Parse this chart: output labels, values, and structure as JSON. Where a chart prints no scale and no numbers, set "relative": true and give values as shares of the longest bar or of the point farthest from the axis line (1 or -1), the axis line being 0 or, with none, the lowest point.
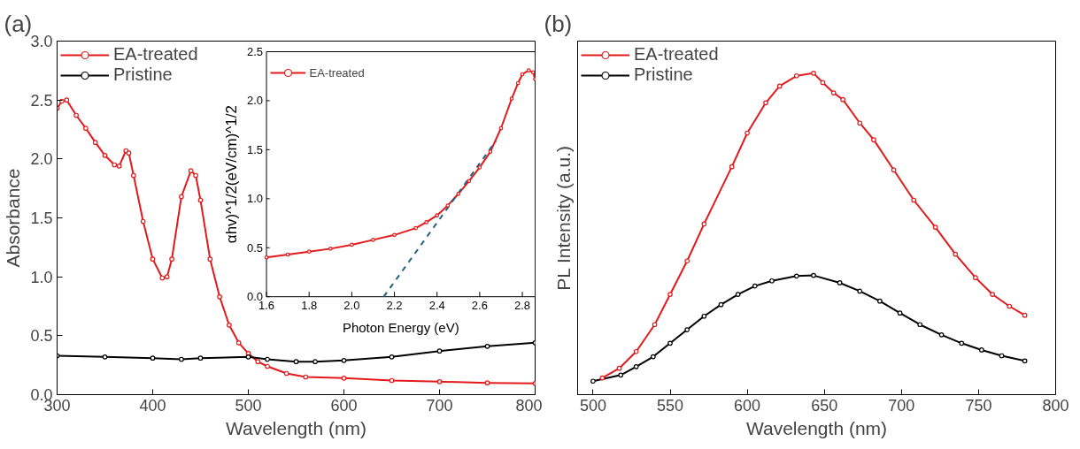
{
  "chart_data": [
    {
      "type": "line",
      "title": "(a)",
      "xlabel": "Wavelength (nm)",
      "ylabel": "Absorbance",
      "xlim": [
        300,
        800
      ],
      "ylim": [
        0,
        3
      ],
      "xticks": [
        300,
        400,
        500,
        600,
        700,
        800
      ],
      "yticks": [
        {
          "value": 0,
          "label": "0.0"
        },
        {
          "value": 0.5,
          "label": "0.5"
        },
        {
          "value": 1,
          "label": "1.0"
        },
        {
          "value": 1.5,
          "label": "1.5"
        },
        {
          "value": 2,
          "label": "2.0"
        },
        {
          "value": 2.5,
          "label": "2.5"
        },
        {
          "value": 3,
          "label": "3.0"
        }
      ],
      "legend": "top left",
      "marker": "circle",
      "line_style": "solid",
      "series": [
        {
          "name": "EA-treated",
          "color": "#e31a1c",
          "x": [
            300,
            305,
            310,
            320,
            330,
            340,
            350,
            360,
            365,
            372,
            375,
            380,
            390,
            400,
            410,
            415,
            420,
            430,
            440,
            445,
            450,
            460,
            470,
            480,
            490,
            500,
            510,
            520,
            540,
            560,
            600,
            650,
            700,
            750,
            800
          ],
          "values": [
            2.43,
            2.49,
            2.5,
            2.37,
            2.26,
            2.14,
            2.03,
            1.95,
            1.94,
            2.07,
            2.05,
            1.86,
            1.47,
            1.15,
            0.99,
            1.0,
            1.15,
            1.68,
            1.9,
            1.86,
            1.65,
            1.15,
            0.83,
            0.59,
            0.44,
            0.35,
            0.28,
            0.24,
            0.18,
            0.15,
            0.14,
            0.12,
            0.11,
            0.1,
            0.095
          ]
        },
        {
          "name": "Pristine",
          "color": "#000000",
          "x": [
            300,
            350,
            400,
            430,
            450,
            500,
            520,
            550,
            570,
            600,
            650,
            700,
            750,
            800
          ],
          "values": [
            0.33,
            0.32,
            0.31,
            0.3,
            0.31,
            0.32,
            0.3,
            0.28,
            0.28,
            0.29,
            0.32,
            0.37,
            0.41,
            0.44
          ]
        }
      ]
    },
    {
      "type": "line",
      "xlabel": "Photon Energy (eV)",
      "ylabel": "αhv)^1/2(eV/cm)^1/2",
      "xlim": [
        1.6,
        2.86
      ],
      "ylim": [
        0,
        2.5
      ],
      "xticks": [
        1.6,
        1.8,
        {
          "value": 2,
          "label": "2.0"
        },
        2.2,
        2.4,
        2.6,
        2.8
      ],
      "yticks": [
        {
          "value": 0,
          "label": "0.0"
        },
        0.5,
        {
          "value": 1,
          "label": "1.0"
        },
        1.5,
        {
          "value": 2,
          "label": "2.0"
        },
        2.5
      ],
      "legend": "top left",
      "series": [
        {
          "name": "EA-treated",
          "color": "#e31a1c",
          "marker": "circle",
          "line_style": "solid",
          "x": [
            1.6,
            1.7,
            1.8,
            1.9,
            2.0,
            2.1,
            2.2,
            2.3,
            2.35,
            2.4,
            2.45,
            2.5,
            2.55,
            2.6,
            2.65,
            2.7,
            2.75,
            2.78,
            2.8,
            2.83,
            2.85,
            2.86
          ],
          "values": [
            0.4,
            0.43,
            0.46,
            0.49,
            0.53,
            0.58,
            0.63,
            0.7,
            0.76,
            0.83,
            0.93,
            1.05,
            1.18,
            1.32,
            1.48,
            1.72,
            2.02,
            2.18,
            2.27,
            2.31,
            2.29,
            2.22
          ]
        },
        {
          "color": "#1f5f7f",
          "marker": "none",
          "line_style": "dashed",
          "x": [
            2.15,
            2.676
          ],
          "values": [
            0,
            1.59
          ]
        }
      ]
    },
    {
      "type": "line",
      "title": "(b)",
      "xlabel": "Wavelength (nm)",
      "ylabel": "PL Intensity (a.u.)",
      "relative": true,
      "xlim": [
        490,
        800
      ],
      "xticks": [
        500,
        550,
        600,
        650,
        700,
        750,
        800
      ],
      "legend": "top left",
      "marker": "circle",
      "line_style": "solid",
      "series": [
        {
          "name": "EA-treated",
          "color": "#e31a1c",
          "x": [
            506,
            517,
            528,
            540,
            550,
            561,
            572,
            590,
            600,
            612,
            621,
            632,
            643,
            649,
            656,
            662,
            673,
            682,
            695,
            708,
            722,
            735,
            748,
            759,
            770,
            780
          ],
          "values": [
            0.052,
            0.082,
            0.134,
            0.218,
            0.312,
            0.416,
            0.531,
            0.709,
            0.814,
            0.908,
            0.96,
            0.992,
            1.0,
            0.971,
            0.939,
            0.918,
            0.845,
            0.793,
            0.699,
            0.605,
            0.521,
            0.437,
            0.364,
            0.312,
            0.275,
            0.247
          ]
        },
        {
          "name": "Pristine",
          "color": "#000000",
          "x": [
            500,
            518,
            528,
            539,
            550,
            561,
            572,
            583,
            594,
            605,
            616,
            632,
            643,
            660,
            673,
            686,
            699,
            712,
            726,
            739,
            752,
            765,
            780
          ],
          "values": [
            0.042,
            0.061,
            0.087,
            0.118,
            0.16,
            0.202,
            0.244,
            0.28,
            0.312,
            0.338,
            0.354,
            0.369,
            0.371,
            0.348,
            0.322,
            0.291,
            0.254,
            0.218,
            0.186,
            0.16,
            0.139,
            0.121,
            0.105
          ]
        }
      ]
    }
  ]
}
